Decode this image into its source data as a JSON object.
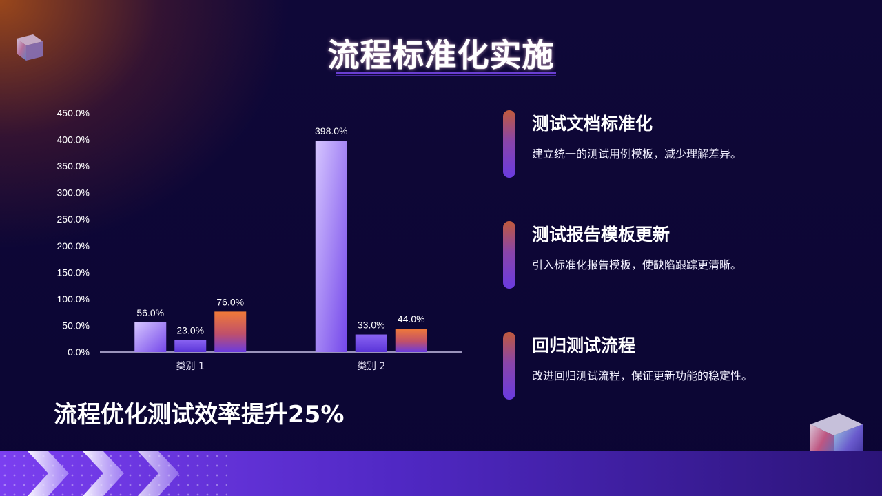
{
  "slide": {
    "title": "流程标准化实施",
    "subtitle": "流程优化测试效率提升25%"
  },
  "items": [
    {
      "heading": "测试文档标准化",
      "description": "建立统一的测试用例模板，减少理解差异。"
    },
    {
      "heading": "测试报告模板更新",
      "description": "引入标准化报告模板，使缺陷跟踪更清晰。"
    },
    {
      "heading": "回归测试流程",
      "description": "改进回归测试流程，保证更新功能的稳定性。"
    }
  ],
  "colors": {
    "accent_purple": "#6a3be0",
    "accent_orange": "#e8703a",
    "background": "#0d0637"
  },
  "chart_data": {
    "type": "bar",
    "categories": [
      "类别 1",
      "类别 2"
    ],
    "series": [
      {
        "values": [
          56.0,
          398.0
        ],
        "color": "#8b63f0"
      },
      {
        "values": [
          23.0,
          33.0
        ],
        "color": "#6a45e6"
      },
      {
        "values": [
          76.0,
          44.0
        ],
        "color": "#e8703a"
      }
    ],
    "data_labels": [
      [
        "56.0%",
        "398.0%"
      ],
      [
        "23.0%",
        "33.0%"
      ],
      [
        "76.0%",
        "44.0%"
      ]
    ],
    "y_ticks": [
      "0.0%",
      "50.0%",
      "100.0%",
      "150.0%",
      "200.0%",
      "250.0%",
      "300.0%",
      "350.0%",
      "400.0%",
      "450.0%"
    ],
    "ylim": [
      0,
      450
    ],
    "grid": false,
    "legend": "none"
  }
}
